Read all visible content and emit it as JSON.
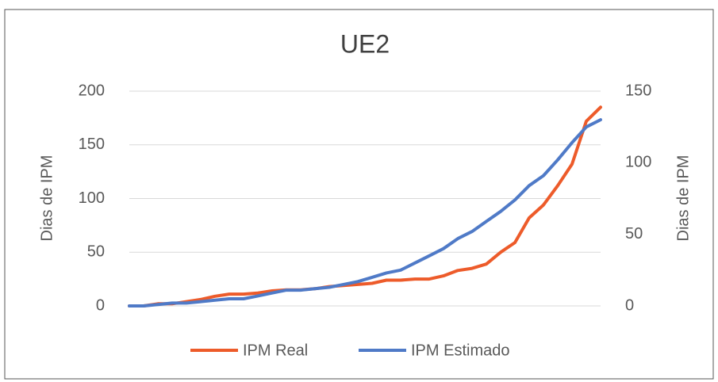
{
  "chart_data": {
    "type": "line",
    "title": "UE2",
    "ylabel": "Dias de IPM",
    "y2label": "Dias de IPM",
    "ylim": [
      0,
      200
    ],
    "yticks": [
      0,
      50,
      100,
      150,
      200
    ],
    "y2lim": [
      0,
      150
    ],
    "y2ticks": [
      0,
      50,
      100,
      150
    ],
    "grid": true,
    "legend": "bottom",
    "series": [
      {
        "name": "IPM Real",
        "color": "#ed5b2a",
        "values": [
          0,
          0,
          2,
          2,
          4,
          6,
          9,
          11,
          11,
          12,
          14,
          15,
          15,
          16,
          18,
          19,
          20,
          21,
          24,
          24,
          25,
          25,
          28,
          33,
          35,
          39,
          50,
          59,
          82,
          94,
          112,
          132,
          172,
          185
        ]
      },
      {
        "name": "IPM Estimado",
        "color": "#4f7ac7",
        "axis": "y2",
        "values": [
          0,
          0,
          1,
          2,
          2,
          3,
          4,
          5,
          5,
          7,
          9,
          11,
          11,
          12,
          13,
          15,
          17,
          20,
          23,
          25,
          30,
          35,
          40,
          47,
          52,
          59,
          66,
          74,
          84,
          91,
          102,
          114,
          125,
          130
        ]
      }
    ]
  }
}
